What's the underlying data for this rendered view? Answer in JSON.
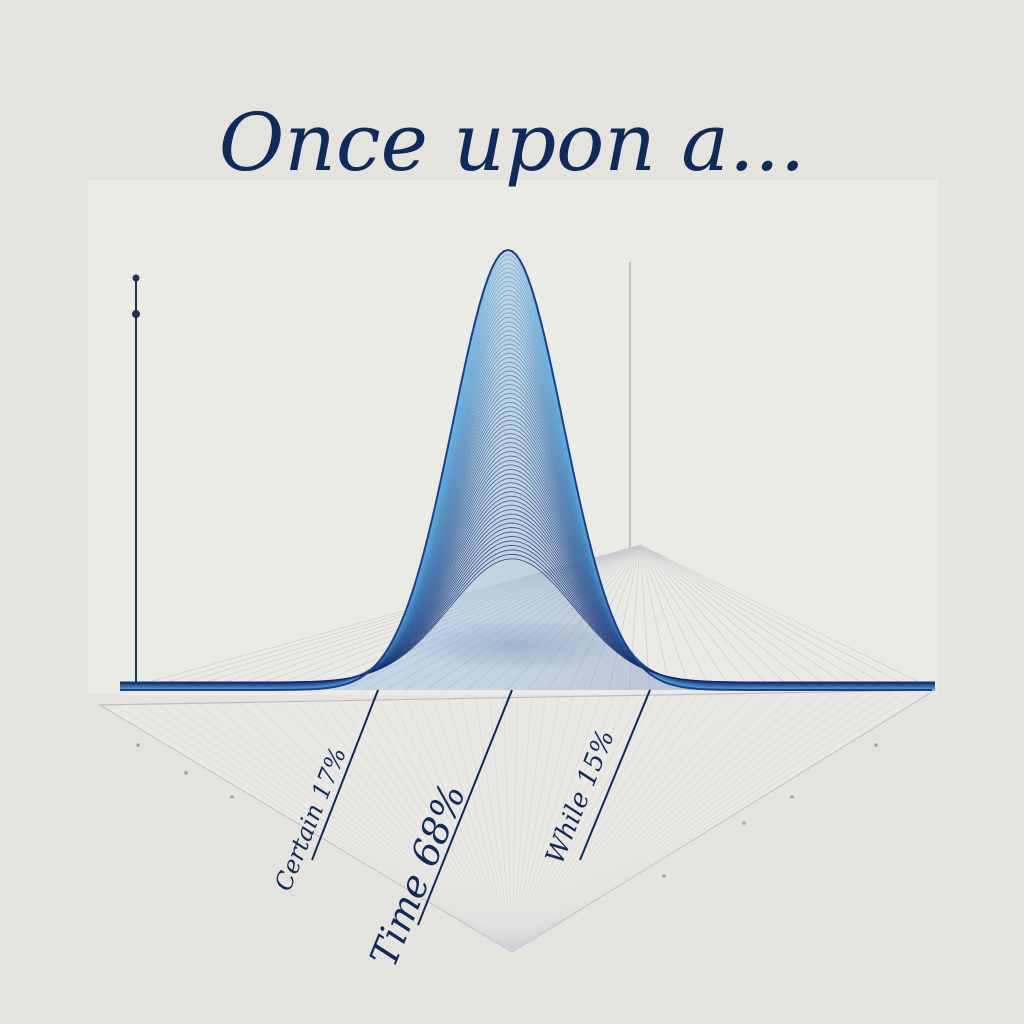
{
  "chart_data": {
    "type": "surface-distribution",
    "title": "Once upon a...",
    "categories": [
      "Certain",
      "Time",
      "While"
    ],
    "values": [
      17,
      68,
      15
    ],
    "value_suffix": "%",
    "colors": {
      "title": "#0f2a5c",
      "surface_light": "#5fb4e6",
      "surface_dark": "#0f2a6e",
      "label": "#0f2a5c",
      "plane_line": "#b9bcc4"
    },
    "grid": true,
    "legend": "none"
  }
}
